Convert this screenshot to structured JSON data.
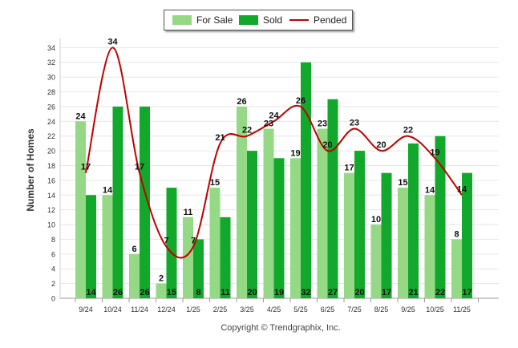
{
  "chart_data": {
    "type": "bar",
    "title": "",
    "xlabel": "",
    "ylabel": "Number of Homes",
    "ylim": [
      0,
      34
    ],
    "y_ticks": [
      0,
      2,
      4,
      6,
      8,
      10,
      12,
      14,
      16,
      18,
      20,
      22,
      24,
      26,
      28,
      30,
      32,
      34
    ],
    "grid": true,
    "categories": [
      "9/24",
      "10/24",
      "11/24",
      "12/24",
      "1/25",
      "2/25",
      "3/25",
      "4/25",
      "5/25",
      "6/25",
      "7/25",
      "8/25",
      "9/25",
      "10/25",
      "11/25"
    ],
    "series": [
      {
        "name": "For Sale",
        "type": "bar",
        "color": "#95d885",
        "values": [
          24,
          14,
          6,
          2,
          11,
          15,
          26,
          23,
          19,
          23,
          17,
          10,
          15,
          14,
          8
        ]
      },
      {
        "name": "Sold",
        "type": "bar",
        "color": "#12a82c",
        "values": [
          14,
          26,
          26,
          15,
          8,
          11,
          20,
          19,
          32,
          27,
          20,
          17,
          21,
          22,
          17
        ]
      },
      {
        "name": "Pended",
        "type": "line",
        "color": "#c00000",
        "values": [
          17,
          34,
          17,
          7,
          7,
          21,
          22,
          24,
          26,
          20,
          23,
          20,
          22,
          19,
          14
        ]
      }
    ],
    "legend_position": "top-center"
  },
  "legend": {
    "for_sale": "For Sale",
    "sold": "Sold",
    "pended": "Pended"
  },
  "footer": {
    "copyright": "Copyright © Trendgraphix, Inc."
  }
}
